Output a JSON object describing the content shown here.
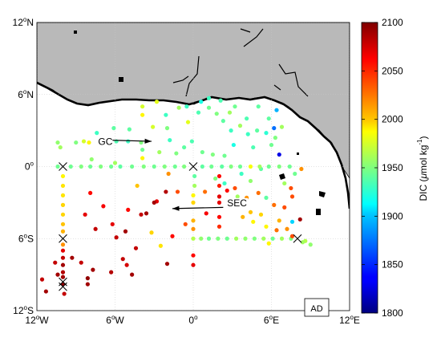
{
  "map": {
    "lon_ticks": [
      {
        "value": -12,
        "base": "12",
        "sup": "o",
        "hem": "W"
      },
      {
        "value": -6,
        "base": "6",
        "sup": "o",
        "hem": "W"
      },
      {
        "value": 0,
        "base": "0",
        "sup": "o",
        "hem": ""
      },
      {
        "value": 6,
        "base": "6",
        "sup": "o",
        "hem": "E"
      },
      {
        "value": 12,
        "base": "12",
        "sup": "o",
        "hem": "E"
      }
    ],
    "lat_ticks": [
      {
        "value": 12,
        "base": "12",
        "sup": "o",
        "hem": "N"
      },
      {
        "value": 6,
        "base": "6",
        "sup": "o",
        "hem": "N"
      },
      {
        "value": 0,
        "base": "0",
        "sup": "o",
        "hem": ""
      },
      {
        "value": -6,
        "base": "6",
        "sup": "o",
        "hem": "S"
      },
      {
        "value": -12,
        "base": "12",
        "sup": "o",
        "hem": "S"
      }
    ],
    "lon_range": [
      -12,
      12
    ],
    "lat_range": [
      -12,
      12
    ],
    "grid": true,
    "land_color": "#b9b9b9",
    "currents": [
      {
        "label": "GC",
        "from": [
          -3.5,
          2.0
        ],
        "to": [
          -4.8,
          2.2
        ],
        "arrow_from": [
          -6.4,
          2.2
        ],
        "arrow_to": [
          -3.2,
          2.1
        ],
        "label_pos": [
          -7.3,
          1.8
        ]
      },
      {
        "label": "SEC",
        "from": [
          2.3,
          -3.5
        ],
        "arrow_from": [
          2.3,
          -3.4
        ],
        "arrow_to": [
          -1.6,
          -3.5
        ],
        "label_pos": [
          2.6,
          -3.3
        ]
      }
    ],
    "mooring_markers": [
      [
        -10,
        0
      ],
      [
        0,
        0
      ],
      [
        -10,
        -6
      ],
      [
        8,
        -6
      ],
      [
        -10,
        -10
      ],
      [
        -10,
        -9.6
      ]
    ],
    "region_label": "AD"
  },
  "colorbar": {
    "min": 1800,
    "max": 2100,
    "ticks": [
      "2100",
      "2050",
      "2000",
      "1950",
      "1900",
      "1850",
      "1800"
    ],
    "label_main": "DIC (",
    "label_mu": "μ",
    "label_rest": "mol kg",
    "label_exp": "-1",
    "label_close": ")"
  },
  "stations": [
    [
      -12.3,
      4.1,
      1925
    ],
    [
      -10.4,
      2.0,
      1955
    ],
    [
      -10.2,
      1.6,
      1960
    ],
    [
      -9.0,
      2.0,
      1950
    ],
    [
      -8.4,
      2.1,
      1975
    ],
    [
      -8.0,
      2.0,
      1990
    ],
    [
      -7.4,
      2.8,
      1930
    ],
    [
      -6.1,
      3.2,
      1940
    ],
    [
      -5.9,
      2.1,
      1935
    ],
    [
      -5.0,
      2.1,
      1930
    ],
    [
      -4.9,
      3.1,
      1940
    ],
    [
      -4.0,
      2.0,
      1950
    ],
    [
      -3.9,
      5.0,
      1975
    ],
    [
      -3.9,
      4.3,
      1990
    ],
    [
      -3.1,
      3.3,
      1975
    ],
    [
      -2.8,
      5.4,
      1980
    ],
    [
      -2.1,
      4.3,
      1930
    ],
    [
      -2.0,
      3.2,
      1950
    ],
    [
      -1.8,
      2.2,
      1930
    ],
    [
      -1.1,
      4.9,
      1960
    ],
    [
      -0.5,
      5.0,
      1930
    ],
    [
      -0.4,
      3.7,
      1980
    ],
    [
      -0.1,
      2.1,
      1935
    ],
    [
      0.4,
      4.5,
      1935
    ],
    [
      0.6,
      5.4,
      1920
    ],
    [
      1.2,
      5.7,
      1930
    ],
    [
      1.2,
      4.9,
      1945
    ],
    [
      1.8,
      4.4,
      1950
    ],
    [
      2.1,
      5.5,
      1935
    ],
    [
      2.3,
      3.8,
      1940
    ],
    [
      2.8,
      4.5,
      1960
    ],
    [
      2.9,
      3.0,
      1930
    ],
    [
      3.2,
      5.0,
      1945
    ],
    [
      3.1,
      1.8,
      1920
    ],
    [
      3.6,
      3.4,
      1960
    ],
    [
      4.1,
      4.0,
      1935
    ],
    [
      4.2,
      2.7,
      1930
    ],
    [
      4.6,
      1.6,
      1935
    ],
    [
      4.9,
      3.0,
      1940
    ],
    [
      5.0,
      5.0,
      1940
    ],
    [
      5.6,
      2.8,
      1925
    ],
    [
      5.8,
      4.0,
      1940
    ],
    [
      6.0,
      1.8,
      1945
    ],
    [
      6.2,
      3.2,
      1870
    ],
    [
      6.3,
      2.4,
      1950
    ],
    [
      6.4,
      4.7,
      1890
    ],
    [
      6.6,
      1.0,
      1830
    ],
    [
      6.8,
      3.3,
      1960
    ],
    [
      -3.9,
      1.4,
      1945
    ],
    [
      -3.9,
      0.7,
      1990
    ],
    [
      -2.6,
      1.2,
      1960
    ],
    [
      -1.3,
      1.1,
      1950
    ],
    [
      -0.7,
      1.6,
      1940
    ],
    [
      0.7,
      1.2,
      1945
    ],
    [
      1.5,
      1.0,
      1950
    ],
    [
      2.4,
      0.9,
      1945
    ],
    [
      -1.9,
      -0.6,
      2020
    ],
    [
      3.7,
      -0.6,
      1930
    ],
    [
      1.7,
      -1.0,
      1950
    ],
    [
      2.4,
      -1.4,
      1930
    ],
    [
      4.4,
      -1.2,
      1955
    ],
    [
      5.2,
      -0.2,
      1940
    ],
    [
      7.8,
      -0.6,
      1945
    ],
    [
      -7.8,
      0.6,
      1955
    ],
    [
      -6.0,
      0.3,
      1960
    ],
    [
      -10.4,
      0.0,
      1945
    ],
    [
      -9.4,
      0.0,
      1945
    ],
    [
      -8.6,
      0.0,
      1950
    ],
    [
      -7.9,
      0.0,
      1945
    ],
    [
      -7.1,
      0.0,
      1950
    ],
    [
      -6.3,
      0.0,
      1945
    ],
    [
      -5.6,
      0.0,
      1940
    ],
    [
      -4.7,
      0.0,
      1945
    ],
    [
      -3.8,
      0.0,
      1950
    ],
    [
      -3.0,
      0.0,
      1945
    ],
    [
      -2.2,
      0.0,
      1950
    ],
    [
      -1.4,
      0.0,
      1945
    ],
    [
      -0.7,
      0.0,
      1950
    ],
    [
      0.7,
      0.0,
      1940
    ],
    [
      1.4,
      0.0,
      1945
    ],
    [
      2.2,
      0.0,
      1940
    ],
    [
      2.9,
      0.0,
      1950
    ],
    [
      3.6,
      0.0,
      1945
    ],
    [
      4.4,
      0.0,
      1985
    ],
    [
      5.1,
      0.0,
      1960
    ],
    [
      5.8,
      0.0,
      1945
    ],
    [
      6.6,
      0.0,
      1950
    ],
    [
      7.4,
      0.0,
      1945
    ],
    [
      -10.0,
      -0.8,
      1990
    ],
    [
      -10.0,
      -1.6,
      1995
    ],
    [
      -10.0,
      -2.4,
      1995
    ],
    [
      -10.0,
      -3.2,
      2000
    ],
    [
      -10.0,
      -4.0,
      2000
    ],
    [
      -10.0,
      -4.8,
      2005
    ],
    [
      -10.0,
      -5.4,
      2010
    ],
    [
      -10.0,
      -6.5,
      2020
    ],
    [
      -10.0,
      -7.0,
      2070
    ],
    [
      -10.0,
      -7.6,
      2080
    ],
    [
      -10.0,
      -8.2,
      2090
    ],
    [
      -10.0,
      -8.8,
      2085
    ],
    [
      -10.0,
      -9.2,
      2090
    ],
    [
      -10.0,
      -9.8,
      2095
    ],
    [
      -9.9,
      -10.6,
      2080
    ],
    [
      -9.3,
      -7.6,
      2090
    ],
    [
      -10.6,
      -8.0,
      2080
    ],
    [
      -10.4,
      -9.0,
      2090
    ],
    [
      0.1,
      -0.8,
      1940
    ],
    [
      0.1,
      -1.6,
      1960
    ],
    [
      0.0,
      -2.4,
      1990
    ],
    [
      0.0,
      -3.0,
      2000
    ],
    [
      0.0,
      -4.5,
      2010
    ],
    [
      0.0,
      -5.2,
      2020
    ],
    [
      0.0,
      -7.4,
      2060
    ],
    [
      0.0,
      -8.2,
      2070
    ],
    [
      0.0,
      -6.0,
      1965
    ],
    [
      2.0,
      -0.8,
      2060
    ],
    [
      2.0,
      -1.6,
      2055
    ],
    [
      2.0,
      -2.5,
      2070
    ],
    [
      2.0,
      -3.0,
      2070
    ],
    [
      2.0,
      -4.2,
      2060
    ],
    [
      2.0,
      -5.0,
      2050
    ],
    [
      3.2,
      -1.8,
      2040
    ],
    [
      2.6,
      -2.0,
      2060
    ],
    [
      3.4,
      -2.5,
      1960
    ],
    [
      3.0,
      -3.0,
      2060
    ],
    [
      0.6,
      -6.0,
      1955
    ],
    [
      1.2,
      -6.0,
      1945
    ],
    [
      1.9,
      -6.0,
      1950
    ],
    [
      2.6,
      -6.0,
      1945
    ],
    [
      3.3,
      -6.0,
      1960
    ],
    [
      4.0,
      -6.0,
      1955
    ],
    [
      4.7,
      -6.0,
      1950
    ],
    [
      5.4,
      -6.0,
      1960
    ],
    [
      6.1,
      -6.0,
      1945
    ],
    [
      6.8,
      -6.0,
      1960
    ],
    [
      7.5,
      -6.0,
      1950
    ],
    [
      8.6,
      -6.2,
      1965
    ],
    [
      9.0,
      -6.5,
      1955
    ],
    [
      5.8,
      -6.4,
      1990
    ],
    [
      3.8,
      -4.2,
      2010
    ],
    [
      4.4,
      -3.8,
      2005
    ],
    [
      4.6,
      -4.6,
      1990
    ],
    [
      5.2,
      -4.0,
      2000
    ],
    [
      6.2,
      -3.2,
      2030
    ],
    [
      5.6,
      -5.0,
      1990
    ],
    [
      6.6,
      -4.5,
      2010
    ],
    [
      7.0,
      -3.4,
      2040
    ],
    [
      7.6,
      -4.6,
      1900
    ],
    [
      7.2,
      -5.2,
      2020
    ],
    [
      6.4,
      -5.3,
      2030
    ],
    [
      7.6,
      -2.5,
      2040
    ],
    [
      7.6,
      -5.8,
      2040
    ],
    [
      8.2,
      -4.4,
      2090
    ],
    [
      8.4,
      -6.3,
      1960
    ],
    [
      4.1,
      -2.6,
      2020
    ],
    [
      5.0,
      -2.2,
      2030
    ],
    [
      5.6,
      -2.6,
      1940
    ],
    [
      7.0,
      -1.4,
      1960
    ],
    [
      7.5,
      -1.8,
      2040
    ],
    [
      8.3,
      -0.2,
      2020
    ],
    [
      -2.8,
      -2.9,
      2070
    ],
    [
      -2.1,
      -2.1,
      2085
    ],
    [
      -3.0,
      -3.0,
      2090
    ],
    [
      -4.0,
      -4.0,
      2080
    ],
    [
      -5.2,
      -5.4,
      2090
    ],
    [
      -5.9,
      -5.9,
      2080
    ],
    [
      -4.4,
      -6.8,
      2080
    ],
    [
      -2.0,
      -8.1,
      2090
    ],
    [
      -5.4,
      -7.7,
      2080
    ],
    [
      -6.3,
      -8.8,
      2085
    ],
    [
      -4.7,
      -9.0,
      2090
    ],
    [
      -7.7,
      -8.6,
      2090
    ],
    [
      -8.1,
      -9.3,
      2095
    ],
    [
      -8.1,
      -9.8,
      2090
    ],
    [
      -11.6,
      -9.4,
      2080
    ],
    [
      -11.3,
      -10.4,
      2090
    ],
    [
      -8.6,
      -8.0,
      2080
    ],
    [
      -3.6,
      -3.9,
      2090
    ],
    [
      -4.3,
      -1.6,
      2005
    ],
    [
      -5.0,
      -3.6,
      2060
    ],
    [
      -1.2,
      -2.1,
      2040
    ],
    [
      0.9,
      -2.1,
      2030
    ],
    [
      -0.6,
      -4.8,
      2040
    ],
    [
      -3.2,
      -5.5,
      2000
    ],
    [
      -2.5,
      -6.6,
      1995
    ],
    [
      -1.6,
      -5.8,
      2060
    ],
    [
      1.0,
      -3.9,
      2065
    ],
    [
      -7.5,
      -5.2,
      2080
    ],
    [
      -6.2,
      -4.8,
      2070
    ],
    [
      -6.9,
      -3.3,
      2065
    ],
    [
      -8.3,
      -4.0,
      2070
    ],
    [
      -7.9,
      -2.2,
      2060
    ],
    [
      -5.1,
      -8.2,
      2075
    ]
  ]
}
